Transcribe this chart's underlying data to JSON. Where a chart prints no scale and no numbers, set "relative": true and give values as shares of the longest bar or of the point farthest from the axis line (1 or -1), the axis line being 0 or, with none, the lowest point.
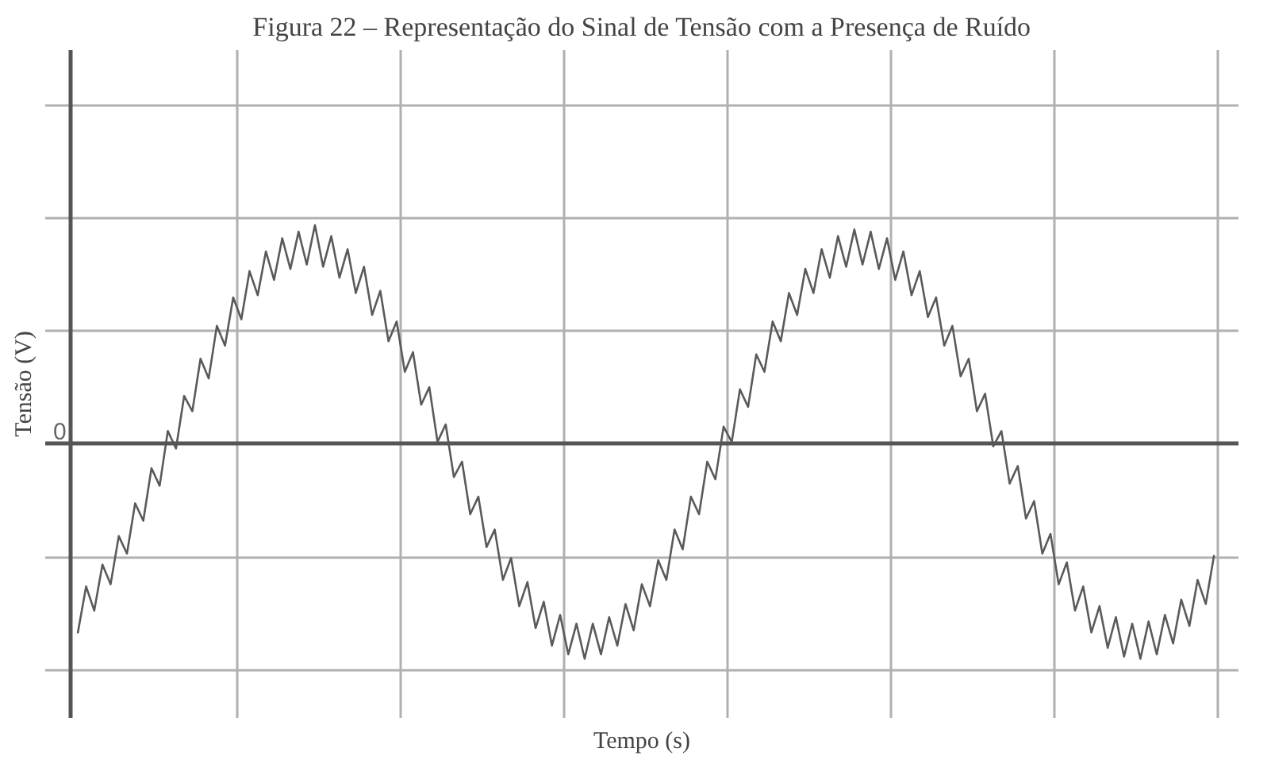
{
  "chart_data": {
    "type": "line",
    "title": "Figura 22 – Representação do Sinal de Tensão com a Presença de Ruído",
    "xlabel": "Tempo (s)",
    "ylabel": "Tensão (V)",
    "relative": true,
    "grid": true,
    "tick_labels": false,
    "annotations": [
      "0"
    ],
    "categories": [
      null,
      null,
      null,
      null,
      null,
      null,
      null,
      null,
      null,
      null,
      null,
      null,
      null,
      null,
      null,
      null,
      null,
      null,
      null,
      null,
      null,
      null,
      null,
      null,
      null,
      null,
      null,
      null,
      null,
      null,
      null,
      null,
      null,
      null,
      null,
      null,
      null,
      null,
      null,
      null,
      null,
      null,
      null,
      null,
      null,
      null,
      null,
      null,
      null,
      null,
      null,
      null,
      null,
      null,
      null,
      null,
      null,
      null,
      null,
      null,
      null,
      null,
      null,
      null,
      null,
      null,
      null,
      null,
      null,
      null,
      null,
      null,
      null,
      null,
      null,
      null,
      null,
      null,
      null,
      null,
      null,
      null,
      null,
      null,
      null,
      null,
      null,
      null,
      null,
      null,
      null,
      null,
      null,
      null,
      null,
      null,
      null,
      null,
      null,
      null,
      null,
      null,
      null,
      null,
      null,
      null,
      null,
      null,
      null,
      null,
      null,
      null,
      null,
      null,
      null,
      null,
      null,
      null,
      null,
      null,
      null,
      null,
      null,
      null,
      null,
      null,
      null,
      null,
      null,
      null,
      null,
      null,
      null,
      null,
      null,
      null,
      null,
      null,
      null,
      null
    ],
    "series": [
      {
        "color": "#5a5a5a",
        "values": [
          -0.86,
          -0.65,
          -0.76,
          -0.55,
          -0.64,
          -0.42,
          -0.5,
          -0.27,
          -0.35,
          -0.11,
          -0.19,
          0.06,
          -0.02,
          0.22,
          0.15,
          0.39,
          0.3,
          0.54,
          0.45,
          0.67,
          0.57,
          0.79,
          0.68,
          0.88,
          0.75,
          0.94,
          0.8,
          0.97,
          0.82,
          1.0,
          0.81,
          0.95,
          0.76,
          0.89,
          0.69,
          0.81,
          0.59,
          0.7,
          0.47,
          0.56,
          0.33,
          0.42,
          0.18,
          0.26,
          0.01,
          0.09,
          -0.15,
          -0.08,
          -0.32,
          -0.24,
          -0.47,
          -0.39,
          -0.62,
          -0.52,
          -0.74,
          -0.63,
          -0.84,
          -0.72,
          -0.92,
          -0.78,
          -0.96,
          -0.82,
          -0.98,
          -0.82,
          -0.96,
          -0.79,
          -0.92,
          -0.73,
          -0.85,
          -0.64,
          -0.74,
          -0.53,
          -0.62,
          -0.39,
          -0.48,
          -0.24,
          -0.32,
          -0.08,
          -0.16,
          0.08,
          0.01,
          0.25,
          0.17,
          0.41,
          0.33,
          0.56,
          0.47,
          0.69,
          0.59,
          0.8,
          0.69,
          0.89,
          0.76,
          0.95,
          0.81,
          0.98,
          0.82,
          0.97,
          0.8,
          0.94,
          0.75,
          0.88,
          0.68,
          0.79,
          0.58,
          0.67,
          0.45,
          0.54,
          0.31,
          0.39,
          0.15,
          0.23,
          -0.01,
          0.06,
          -0.18,
          -0.1,
          -0.34,
          -0.26,
          -0.5,
          -0.41,
          -0.64,
          -0.54,
          -0.76,
          -0.65,
          -0.86,
          -0.74,
          -0.93,
          -0.79,
          -0.97,
          -0.82,
          -0.98,
          -0.81,
          -0.96,
          -0.78,
          -0.91,
          -0.71,
          -0.83,
          -0.62,
          -0.73,
          -0.51
        ]
      }
    ]
  }
}
